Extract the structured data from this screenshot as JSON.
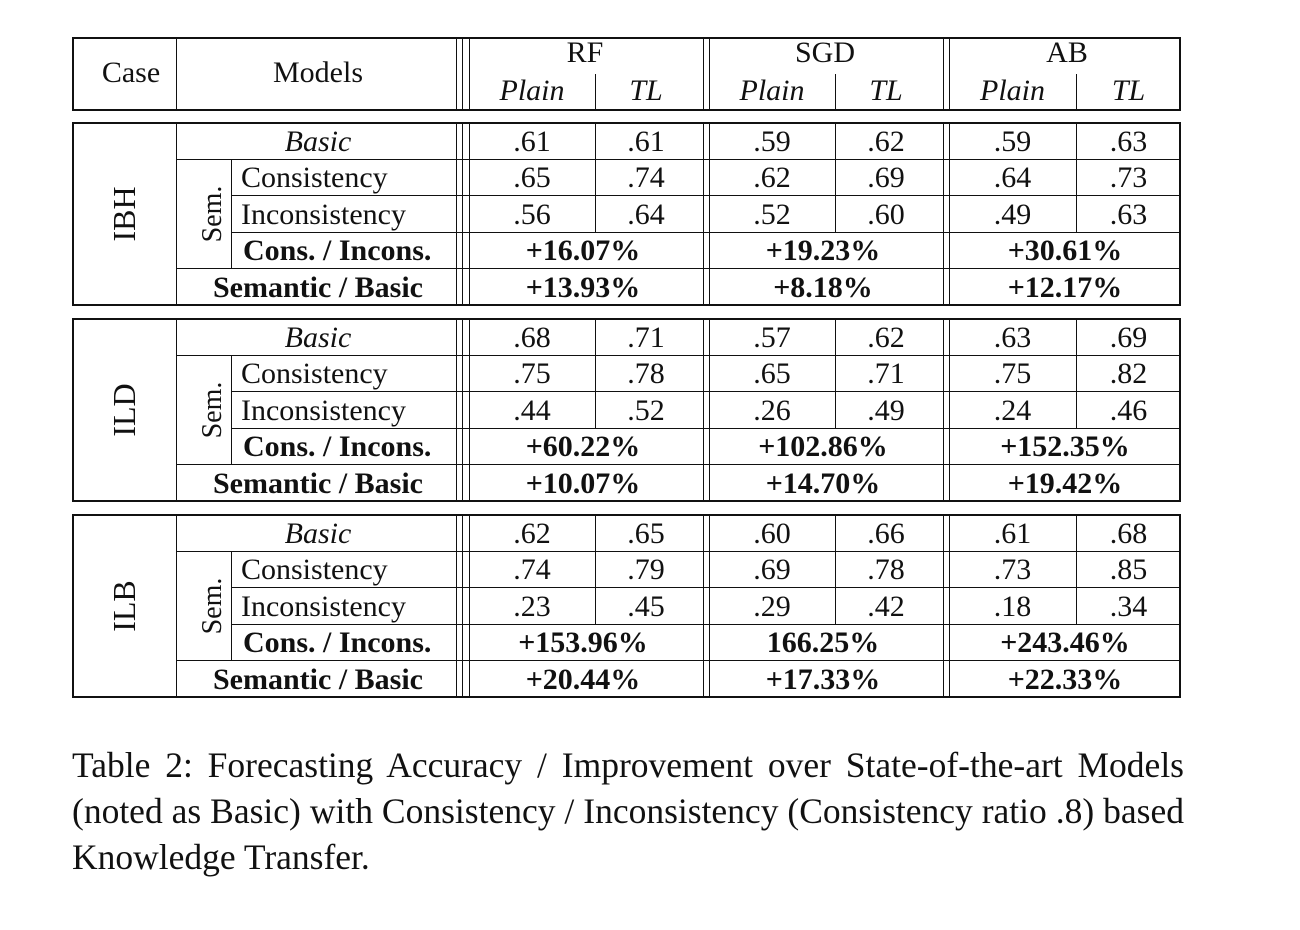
{
  "header": {
    "case": "Case",
    "models": "Models",
    "groups": [
      "RF",
      "SGD",
      "AB"
    ],
    "sub": [
      "Plain",
      "TL"
    ]
  },
  "row_labels": {
    "basic": "Basic",
    "sem": "Sem.",
    "consistency": "Consistency",
    "inconsistency": "Inconsistency",
    "cons_incons": "Cons. / Incons.",
    "semantic_basic": "Semantic / Basic"
  },
  "blocks": [
    {
      "case": "IBH",
      "basic": [
        ".61",
        ".61",
        ".59",
        ".62",
        ".59",
        ".63"
      ],
      "consistency": [
        ".65",
        ".74",
        ".62",
        ".69",
        ".64",
        ".73"
      ],
      "inconsistency": [
        ".56",
        ".64",
        ".52",
        ".60",
        ".49",
        ".63"
      ],
      "cons_incons": [
        "+16.07%",
        "+19.23%",
        "+30.61%"
      ],
      "semantic_basic": [
        "+13.93%",
        "+8.18%",
        "+12.17%"
      ]
    },
    {
      "case": "ILD",
      "basic": [
        ".68",
        ".71",
        ".57",
        ".62",
        ".63",
        ".69"
      ],
      "consistency": [
        ".75",
        ".78",
        ".65",
        ".71",
        ".75",
        ".82"
      ],
      "inconsistency": [
        ".44",
        ".52",
        ".26",
        ".49",
        ".24",
        ".46"
      ],
      "cons_incons": [
        "+60.22%",
        "+102.86%",
        "+152.35%"
      ],
      "semantic_basic": [
        "+10.07%",
        "+14.70%",
        "+19.42%"
      ]
    },
    {
      "case": "ILB",
      "basic": [
        ".62",
        ".65",
        ".60",
        ".66",
        ".61",
        ".68"
      ],
      "consistency": [
        ".74",
        ".79",
        ".69",
        ".78",
        ".73",
        ".85"
      ],
      "inconsistency": [
        ".23",
        ".45",
        ".29",
        ".42",
        ".18",
        ".34"
      ],
      "cons_incons": [
        "+153.96%",
        "166.25%",
        "+243.46%"
      ],
      "semantic_basic": [
        "+20.44%",
        "+17.33%",
        "+22.33%"
      ]
    }
  ],
  "caption": "Table 2: Forecasting Accuracy / Improvement over State-of-the-art Models (noted as Basic) with Consistency / Inconsistency (Consistency ratio .8) based Knowledge Transfer."
}
